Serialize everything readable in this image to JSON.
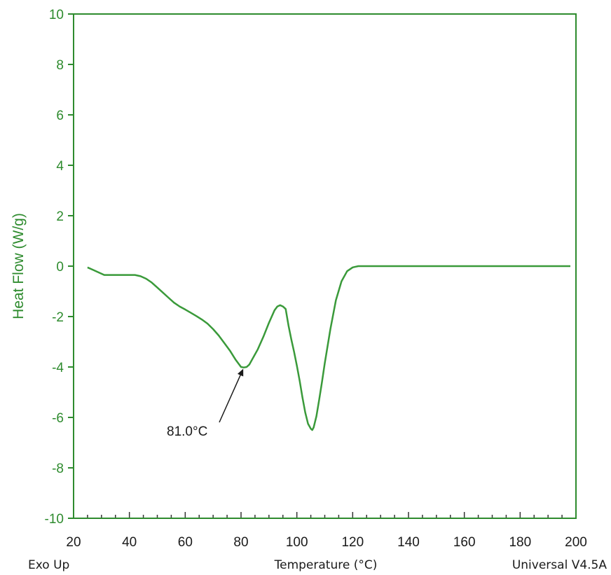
{
  "chart_data": {
    "type": "line",
    "title": "",
    "xlabel": "Temperature (°C)",
    "ylabel": "Heat Flow (W/g)",
    "xlim": [
      20,
      200
    ],
    "ylim": [
      -10,
      10
    ],
    "x_ticks": [
      20,
      40,
      60,
      80,
      100,
      120,
      140,
      160,
      180,
      200
    ],
    "y_ticks": [
      -10,
      -8,
      -6,
      -4,
      -2,
      0,
      2,
      4,
      6,
      8,
      10
    ],
    "footer_left": "Exo Up",
    "footer_right": "Universal V4.5A",
    "colors": {
      "axis": "#2e8b2e",
      "line": "#3a9a3a",
      "text": "#1a1a1a"
    },
    "series": [
      {
        "x": [
          25,
          27,
          29,
          31,
          34,
          38,
          42,
          44,
          46,
          48,
          50,
          52,
          54,
          56,
          58,
          60,
          62,
          64,
          66,
          68,
          70,
          72,
          74,
          76,
          78,
          80,
          81,
          82,
          83,
          84,
          86,
          88,
          90,
          91,
          92,
          93,
          94,
          95,
          96,
          97,
          98,
          99,
          100,
          101,
          102,
          103,
          104,
          105,
          105.5,
          106,
          107,
          108,
          109,
          110,
          112,
          114,
          116,
          118,
          120,
          122,
          124,
          130,
          140,
          150,
          160,
          170,
          180,
          190,
          198
        ],
        "y": [
          -0.05,
          -0.15,
          -0.25,
          -0.35,
          -0.35,
          -0.35,
          -0.35,
          -0.4,
          -0.5,
          -0.65,
          -0.85,
          -1.05,
          -1.25,
          -1.45,
          -1.6,
          -1.72,
          -1.85,
          -1.98,
          -2.12,
          -2.28,
          -2.5,
          -2.75,
          -3.05,
          -3.35,
          -3.7,
          -4.0,
          -4.02,
          -4.0,
          -3.9,
          -3.7,
          -3.3,
          -2.8,
          -2.25,
          -2.0,
          -1.75,
          -1.6,
          -1.55,
          -1.6,
          -1.7,
          -2.35,
          -2.9,
          -3.4,
          -3.95,
          -4.55,
          -5.2,
          -5.8,
          -6.25,
          -6.45,
          -6.5,
          -6.4,
          -5.95,
          -5.3,
          -4.6,
          -3.85,
          -2.5,
          -1.35,
          -0.6,
          -0.2,
          -0.05,
          0.0,
          0.0,
          0.0,
          0.0,
          0.0,
          0.0,
          0.0,
          0.0,
          0.0,
          0.0
        ]
      }
    ],
    "annotations": [
      {
        "text": "81.0°C",
        "x": 81,
        "y": -4.02
      }
    ]
  }
}
